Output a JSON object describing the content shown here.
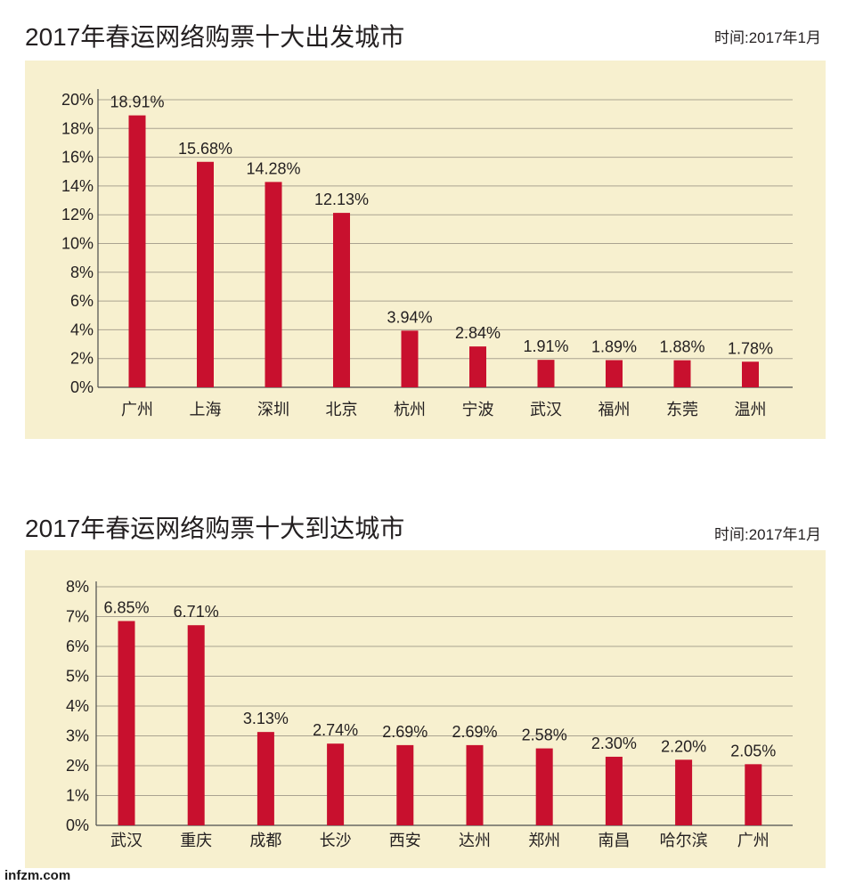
{
  "colors": {
    "bar": "#c8102e",
    "panel": "#f7f0cf",
    "text": "#231f20",
    "grid": "#aaa391"
  },
  "chart_data": [
    {
      "type": "bar",
      "title": "2017年春运网络购票十大出发城市",
      "date_note": "时间:2017年1月",
      "categories": [
        "广州",
        "上海",
        "深圳",
        "北京",
        "杭州",
        "宁波",
        "武汉",
        "福州",
        "东莞",
        "温州"
      ],
      "values": [
        18.91,
        15.68,
        14.28,
        12.13,
        3.94,
        2.84,
        1.91,
        1.89,
        1.88,
        1.78
      ],
      "value_labels": [
        "18.91%",
        "15.68%",
        "14.28%",
        "12.13%",
        "3.94%",
        "2.84%",
        "1.91%",
        "1.89%",
        "1.88%",
        "1.78%"
      ],
      "ylim": [
        0,
        20
      ],
      "yticks": [
        0,
        2,
        4,
        6,
        8,
        10,
        12,
        14,
        16,
        18,
        20
      ],
      "ytick_labels": [
        "0%",
        "2%",
        "4%",
        "6%",
        "8%",
        "10%",
        "12%",
        "14%",
        "16%",
        "18%",
        "20%"
      ],
      "grid": true
    },
    {
      "type": "bar",
      "title": "2017年春运网络购票十大到达城市",
      "date_note": "时间:2017年1月",
      "categories": [
        "武汉",
        "重庆",
        "成都",
        "长沙",
        "西安",
        "达州",
        "郑州",
        "南昌",
        "哈尔滨",
        "广州"
      ],
      "values": [
        6.85,
        6.71,
        3.13,
        2.74,
        2.69,
        2.69,
        2.58,
        2.3,
        2.2,
        2.05
      ],
      "value_labels": [
        "6.85%",
        "6.71%",
        "3.13%",
        "2.74%",
        "2.69%",
        "2.69%",
        "2.58%",
        "2.30%",
        "2.20%",
        "2.05%"
      ],
      "ylim": [
        0,
        8
      ],
      "yticks": [
        0,
        1,
        2,
        3,
        4,
        5,
        6,
        7,
        8
      ],
      "ytick_labels": [
        "0%",
        "1%",
        "2%",
        "3%",
        "4%",
        "5%",
        "6%",
        "7%",
        "8%"
      ],
      "grid": true
    }
  ],
  "footer": {
    "site": "infzm.com"
  }
}
